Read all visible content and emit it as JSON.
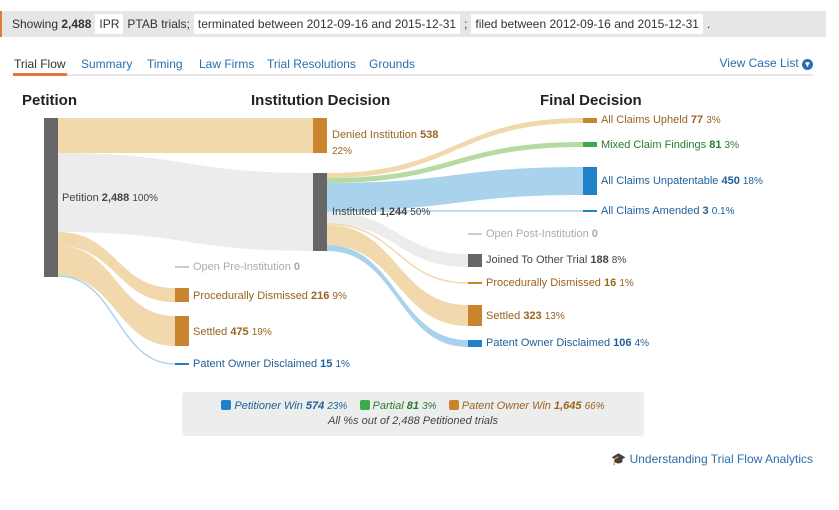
{
  "filter": {
    "showing": "Showing",
    "count": "2,488",
    "type": "IPR",
    "suffix": "PTAB trials;",
    "terminated": "terminated between 2012-09-16 and 2015-12-31",
    "sep": ";",
    "filed": "filed between 2012-09-16 and 2015-12-31",
    "end": "."
  },
  "tabs": [
    "Trial Flow",
    "Summary",
    "Timing",
    "Law Firms",
    "Trial Resolutions",
    "Grounds"
  ],
  "view_case_list": "View Case List",
  "columns": {
    "petition": "Petition",
    "institution": "Institution Decision",
    "final": "Final Decision"
  },
  "colors": {
    "petitioner": "#1f82c8",
    "partial": "#3aaa4a",
    "owner": "#c8852d",
    "neutral": "#666666",
    "petitioner_flow": "#a9d3ec",
    "partial_flow": "#b5dba3",
    "owner_flow": "#f1d8ad",
    "neutral_flow": "#ececec"
  },
  "nodes": {
    "petition": {
      "label": "Petition",
      "count": "2,488",
      "pct": "100%"
    },
    "denied": {
      "label": "Denied Institution",
      "count": "538",
      "pct": "22%"
    },
    "instituted": {
      "label": "Instituted",
      "count": "1,244",
      "pct": "50%"
    },
    "open_pre": {
      "label": "Open Pre-Institution",
      "count": "0",
      "pct": ""
    },
    "proc_pre": {
      "label": "Procedurally Dismissed",
      "count": "216",
      "pct": "9%"
    },
    "settled_pre": {
      "label": "Settled",
      "count": "475",
      "pct": "19%"
    },
    "pod_pre": {
      "label": "Patent Owner Disclaimed",
      "count": "15",
      "pct": "1%"
    },
    "upheld": {
      "label": "All Claims Upheld",
      "count": "77",
      "pct": "3%"
    },
    "mixed": {
      "label": "Mixed Claim Findings",
      "count": "81",
      "pct": "3%"
    },
    "unpat": {
      "label": "All Claims Unpatentable",
      "count": "450",
      "pct": "18%"
    },
    "amended": {
      "label": "All Claims Amended",
      "count": "3",
      "pct": "0.1%"
    },
    "open_post": {
      "label": "Open Post-Institution",
      "count": "0",
      "pct": ""
    },
    "joined": {
      "label": "Joined To Other Trial",
      "count": "188",
      "pct": "8%"
    },
    "proc_post": {
      "label": "Procedurally Dismissed",
      "count": "16",
      "pct": "1%"
    },
    "settled_post": {
      "label": "Settled",
      "count": "323",
      "pct": "13%"
    },
    "pod_post": {
      "label": "Patent Owner Disclaimed",
      "count": "106",
      "pct": "4%"
    }
  },
  "legend": {
    "petitioner": {
      "label": "Petitioner Win",
      "count": "574",
      "pct": "23%"
    },
    "partial": {
      "label": "Partial",
      "count": "81",
      "pct": "3%"
    },
    "owner": {
      "label": "Patent Owner Win",
      "count": "1,645",
      "pct": "66%"
    },
    "note": "All %s out of 2,488 Petitioned trials"
  },
  "understanding": "Understanding Trial Flow Analytics"
}
